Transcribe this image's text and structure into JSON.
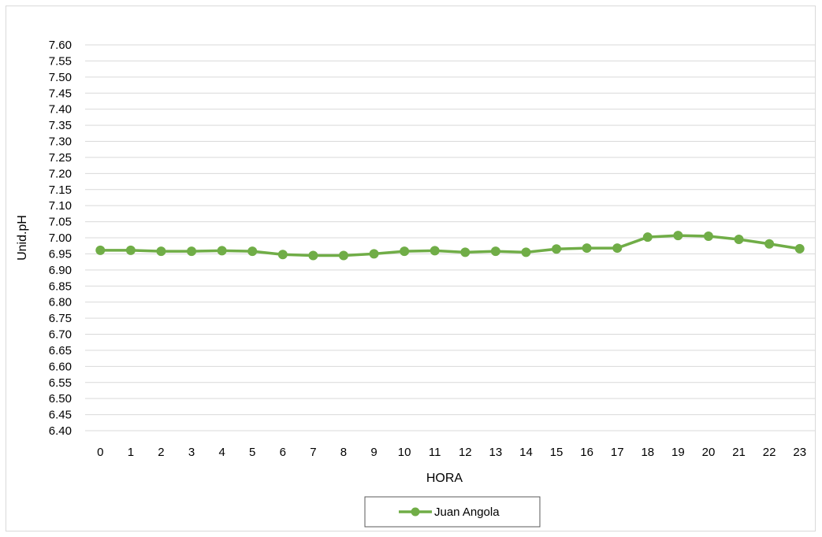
{
  "chart_data": {
    "type": "line",
    "title": "",
    "xlabel": "HORA",
    "ylabel": "Unid.pH",
    "categories": [
      "0",
      "1",
      "2",
      "3",
      "4",
      "5",
      "6",
      "7",
      "8",
      "9",
      "10",
      "11",
      "12",
      "13",
      "14",
      "15",
      "16",
      "17",
      "18",
      "19",
      "20",
      "21",
      "22",
      "23"
    ],
    "ylim": [
      6.4,
      7.6
    ],
    "ytick_step": 0.05,
    "ytick_labels": [
      "7.60",
      "7.55",
      "7.50",
      "7.45",
      "7.40",
      "7.35",
      "7.30",
      "7.25",
      "7.20",
      "7.15",
      "7.10",
      "7.05",
      "7.00",
      "6.95",
      "6.90",
      "6.85",
      "6.80",
      "6.75",
      "6.70",
      "6.65",
      "6.60",
      "6.55",
      "6.50",
      "6.45",
      "6.40"
    ],
    "grid": "horizontal",
    "legend_position": "bottom",
    "series": [
      {
        "name": "Juan Angola",
        "color": "#70ad47",
        "values": [
          6.961,
          6.961,
          6.958,
          6.958,
          6.96,
          6.958,
          6.948,
          6.945,
          6.945,
          6.95,
          6.958,
          6.96,
          6.955,
          6.958,
          6.955,
          6.965,
          6.968,
          6.968,
          7.002,
          7.007,
          7.005,
          6.995,
          6.981,
          6.966
        ]
      }
    ]
  }
}
